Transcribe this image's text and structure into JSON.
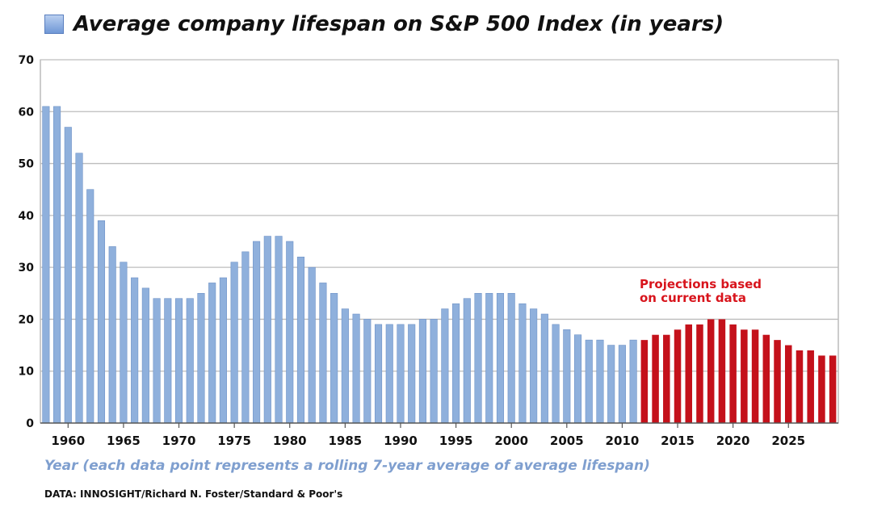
{
  "title": "Average company lifespan on S&P 500 Index (in years)",
  "x_caption": "Year (each data point represents a rolling 7-year average of average lifespan)",
  "source": "DATA: INNOSIGHT/Richard N. Foster/Standard & Poor's",
  "projection_note": "Projections based\non current data",
  "colors": {
    "historical": "#8fb0dc",
    "projection": "#c4111b",
    "note": "#d8141c",
    "caption": "#7f9fcf",
    "grid": "#bdbdbd"
  },
  "chart_data": {
    "type": "bar",
    "title": "Average company lifespan on S&P 500 Index (in years)",
    "xlabel": "Year (each data point represents a rolling 7-year average of average lifespan)",
    "ylabel": "",
    "ylim": [
      0,
      70
    ],
    "yticks": [
      "0",
      "10",
      "20",
      "30",
      "40",
      "50",
      "60",
      "70"
    ],
    "xticks": [
      "1960",
      "1965",
      "1970",
      "1975",
      "1980",
      "1985",
      "1990",
      "1995",
      "2000",
      "2005",
      "2010",
      "2015",
      "2020",
      "2025"
    ],
    "grid": true,
    "series": [
      {
        "x": [
          1958,
          1959,
          1960,
          1961,
          1962,
          1963,
          1964,
          1965,
          1966,
          1967,
          1968,
          1969,
          1970,
          1971,
          1972,
          1973,
          1974,
          1975,
          1976,
          1977,
          1978,
          1979,
          1980,
          1981,
          1982,
          1983,
          1984,
          1985,
          1986,
          1987,
          1988,
          1989,
          1990,
          1991,
          1992,
          1993,
          1994,
          1995,
          1996,
          1997,
          1998,
          1999,
          2000,
          2001,
          2002,
          2003,
          2004,
          2005,
          2006,
          2007,
          2008,
          2009,
          2010,
          2011
        ],
        "values": [
          61,
          61,
          57,
          52,
          45,
          39,
          34,
          31,
          28,
          26,
          24,
          24,
          24,
          24,
          25,
          27,
          28,
          31,
          33,
          35,
          36,
          36,
          35,
          32,
          30,
          27,
          25,
          22,
          21,
          20,
          19,
          19,
          19,
          19,
          20,
          20,
          22,
          23,
          24,
          25,
          25,
          25,
          25,
          23,
          22,
          21,
          19,
          18,
          17,
          16,
          16,
          15,
          15,
          16
        ]
      },
      {
        "x": [
          2012,
          2013,
          2014,
          2015,
          2016,
          2017,
          2018,
          2019,
          2020,
          2021,
          2022,
          2023,
          2024,
          2025,
          2026,
          2027,
          2028,
          2029
        ],
        "values": [
          16,
          17,
          17,
          18,
          19,
          19,
          20,
          20,
          19,
          18,
          18,
          17,
          16,
          15,
          14,
          14,
          13,
          13
        ]
      }
    ]
  }
}
